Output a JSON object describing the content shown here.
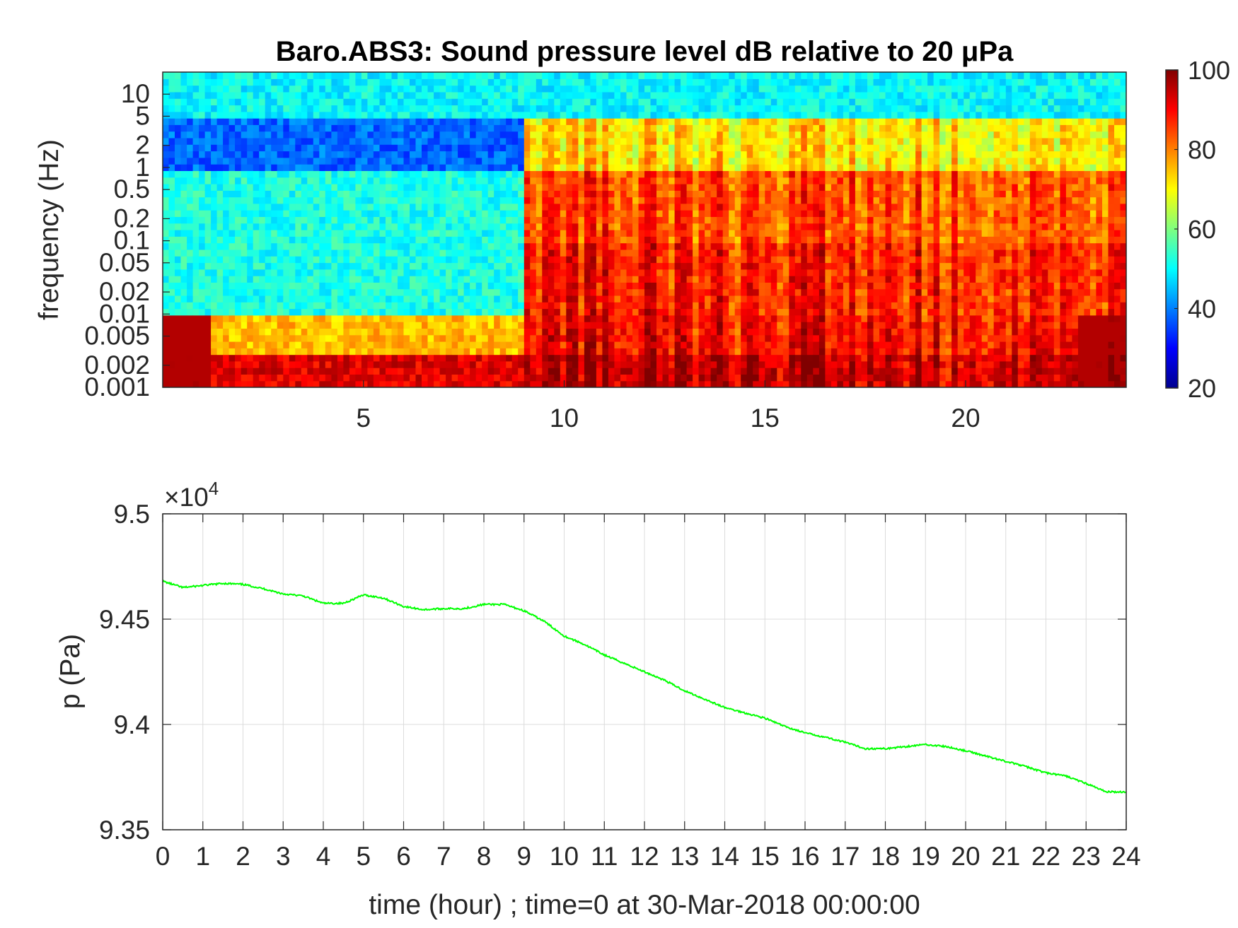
{
  "chart_data": [
    {
      "type": "heatmap",
      "title": "Baro.ABS3: Sound pressure level dB relative to 20 μPa",
      "ylabel": "frequency (Hz)",
      "xlabel": "",
      "y_scale": "log",
      "xlim": [
        0,
        24
      ],
      "ylim": [
        0.001,
        20
      ],
      "x_ticks": [
        5,
        10,
        15,
        20
      ],
      "x_tick_labels": [
        "5",
        "10",
        "15",
        "20"
      ],
      "y_ticks": [
        0.001,
        0.002,
        0.005,
        0.01,
        0.02,
        0.05,
        0.1,
        0.2,
        0.5,
        1,
        2,
        5,
        10
      ],
      "y_tick_labels": [
        "0.001",
        "0.002",
        "0.005",
        "0.01",
        "0.02",
        "0.05",
        "0.1",
        "0.2",
        "0.5",
        "1",
        "2",
        "5",
        "10"
      ],
      "colorbar": {
        "range": [
          20,
          100
        ],
        "ticks": [
          20,
          40,
          60,
          80,
          100
        ],
        "tick_labels": [
          "20",
          "40",
          "60",
          "80",
          "100"
        ],
        "colormap": "jet"
      },
      "description_rows": [
        {
          "freq_band": "5-20 Hz",
          "hours_0_9": 50,
          "hours_9_24": 50
        },
        {
          "freq_band": "1-5 Hz",
          "hours_0_9": 38,
          "hours_9_24": 72
        },
        {
          "freq_band": "0.1-1 Hz",
          "hours_0_9": 52,
          "hours_9_24": 84
        },
        {
          "freq_band": "0.01-0.1 Hz",
          "hours_0_9": 52,
          "hours_9_24": 88
        },
        {
          "freq_band": "0.003-0.01 Hz",
          "hours_0_9": 75,
          "hours_9_24": 90
        },
        {
          "freq_band": "0.001-0.003 Hz",
          "hours_0_9": 92,
          "hours_9_24": 95
        }
      ]
    },
    {
      "type": "line",
      "title": "",
      "xlabel": "time (hour) ; time=0 at 30-Mar-2018 00:00:00",
      "ylabel": "p (Pa)",
      "y_multiplier": "×10^4",
      "xlim": [
        0,
        24
      ],
      "ylim": [
        93500,
        95000
      ],
      "grid": true,
      "x_ticks": [
        0,
        1,
        2,
        3,
        4,
        5,
        6,
        7,
        8,
        9,
        10,
        11,
        12,
        13,
        14,
        15,
        16,
        17,
        18,
        19,
        20,
        21,
        22,
        23,
        24
      ],
      "x_tick_labels": [
        "0",
        "1",
        "2",
        "3",
        "4",
        "5",
        "6",
        "7",
        "8",
        "9",
        "10",
        "11",
        "12",
        "13",
        "14",
        "15",
        "16",
        "17",
        "18",
        "19",
        "20",
        "21",
        "22",
        "23",
        "24"
      ],
      "y_ticks": [
        93500,
        94000,
        94500,
        95000
      ],
      "y_tick_labels": [
        "9.35",
        "9.4",
        "9.45",
        "9.5"
      ],
      "series": [
        {
          "color": "#00ff00",
          "x": [
            0,
            0.5,
            1,
            1.5,
            2,
            2.5,
            3,
            3.5,
            4,
            4.5,
            5,
            5.5,
            6,
            6.5,
            7,
            7.5,
            8,
            8.5,
            9,
            9.5,
            10,
            10.5,
            11,
            11.5,
            12,
            12.5,
            13,
            13.5,
            14,
            14.5,
            15,
            15.5,
            16,
            16.5,
            17,
            17.5,
            18,
            18.5,
            19,
            19.5,
            20,
            20.5,
            21,
            21.5,
            22,
            22.5,
            23,
            23.5,
            24
          ],
          "y": [
            94680,
            94650,
            94660,
            94670,
            94665,
            94645,
            94620,
            94610,
            94575,
            94575,
            94615,
            94600,
            94560,
            94545,
            94550,
            94550,
            94570,
            94570,
            94540,
            94490,
            94420,
            94380,
            94330,
            94290,
            94250,
            94210,
            94160,
            94120,
            94080,
            94055,
            94030,
            93990,
            93960,
            93940,
            93915,
            93885,
            93885,
            93895,
            93905,
            93895,
            93875,
            93850,
            93825,
            93800,
            93770,
            93755,
            93720,
            93680,
            93680
          ]
        }
      ]
    }
  ],
  "colors": {
    "axis": "#262626",
    "grid": "#dcdcdc",
    "line": "#00ff00"
  }
}
